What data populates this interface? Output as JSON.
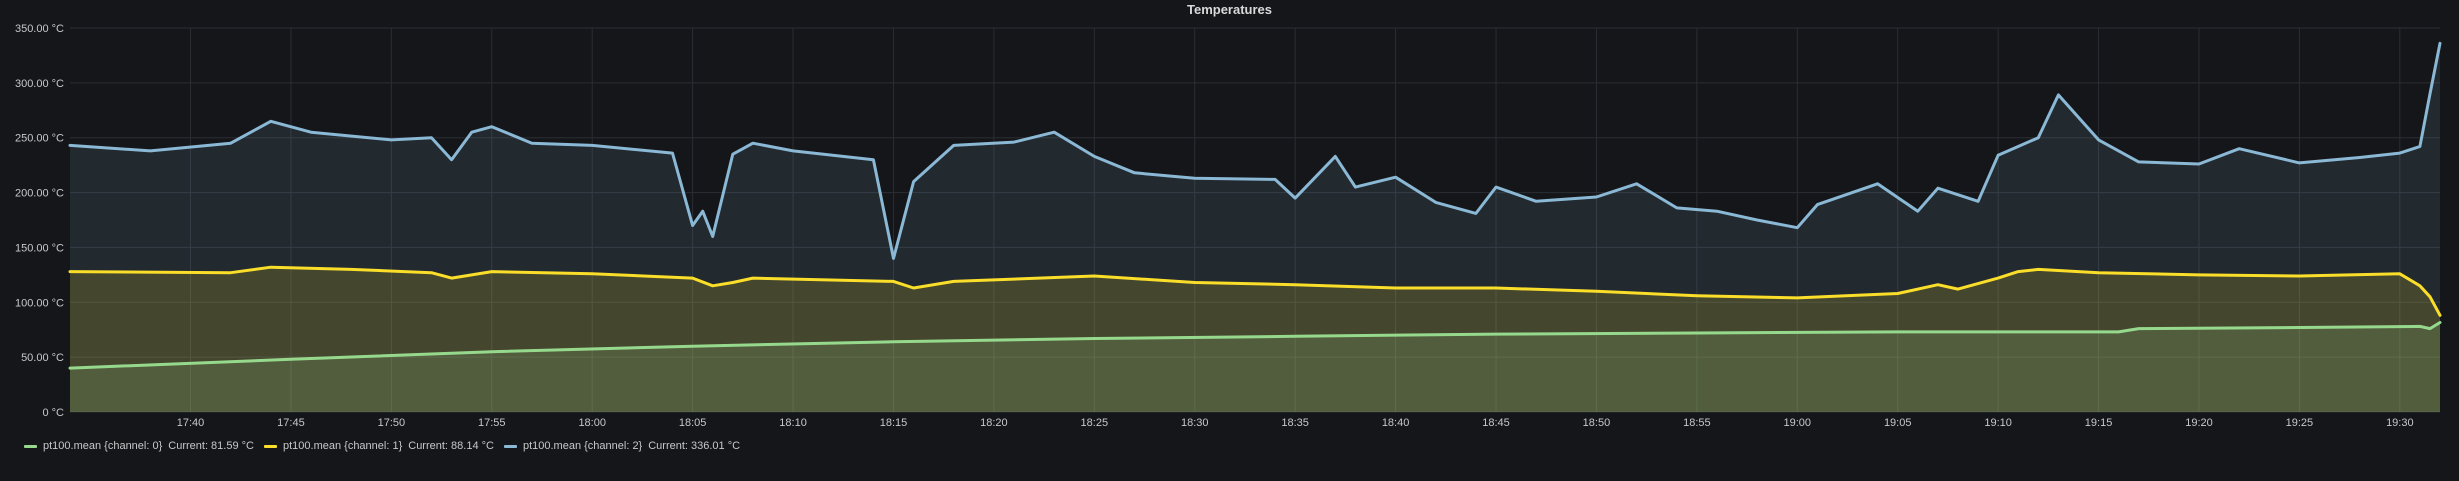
{
  "panel": {
    "title": "Temperatures"
  },
  "chart_data": {
    "type": "line",
    "title": "Temperatures",
    "xlabel": "",
    "ylabel": "",
    "ylim": [
      0,
      350
    ],
    "y_ticks": [
      "0 °C",
      "50.00 °C",
      "100.00 °C",
      "150.00 °C",
      "200.00 °C",
      "250.00 °C",
      "300.00 °C",
      "350.00 °C"
    ],
    "y_tick_values": [
      0,
      50,
      100,
      150,
      200,
      250,
      300,
      350
    ],
    "x_range": [
      "17:34",
      "19:32"
    ],
    "x_ticks": [
      "17:40",
      "17:45",
      "17:50",
      "17:55",
      "18:00",
      "18:05",
      "18:10",
      "18:15",
      "18:20",
      "18:25",
      "18:30",
      "18:35",
      "18:40",
      "18:45",
      "18:50",
      "18:55",
      "19:00",
      "19:05",
      "19:10",
      "19:15",
      "19:20",
      "19:25",
      "19:30"
    ],
    "grid": true,
    "legend_position": "bottom-left",
    "series": [
      {
        "name": "pt100.mean {channel: 0}",
        "color": "#96d98d",
        "current": "Current: 81.59 °C",
        "points": [
          [
            "17:34",
            40
          ],
          [
            "17:45",
            48
          ],
          [
            "17:55",
            55
          ],
          [
            "18:05",
            60
          ],
          [
            "18:15",
            64
          ],
          [
            "18:25",
            67
          ],
          [
            "18:35",
            69
          ],
          [
            "18:45",
            71
          ],
          [
            "18:55",
            72
          ],
          [
            "19:05",
            73
          ],
          [
            "19:16",
            73
          ],
          [
            "19:17",
            76
          ],
          [
            "19:25",
            77
          ],
          [
            "19:31",
            78
          ],
          [
            "19:31.5",
            76
          ],
          [
            "19:32",
            81.59
          ]
        ]
      },
      {
        "name": "pt100.mean {channel: 1}",
        "color": "#fade2a",
        "current": "Current: 88.14 °C",
        "points": [
          [
            "17:34",
            128
          ],
          [
            "17:42",
            127
          ],
          [
            "17:44",
            132
          ],
          [
            "17:48",
            130
          ],
          [
            "17:52",
            127
          ],
          [
            "17:53",
            122
          ],
          [
            "17:55",
            128
          ],
          [
            "18:00",
            126
          ],
          [
            "18:05",
            122
          ],
          [
            "18:06",
            115
          ],
          [
            "18:07",
            118
          ],
          [
            "18:08",
            122
          ],
          [
            "18:15",
            119
          ],
          [
            "18:16",
            113
          ],
          [
            "18:18",
            119
          ],
          [
            "18:25",
            124
          ],
          [
            "18:30",
            118
          ],
          [
            "18:35",
            116
          ],
          [
            "18:40",
            113
          ],
          [
            "18:45",
            113
          ],
          [
            "18:50",
            110
          ],
          [
            "18:55",
            106
          ],
          [
            "19:00",
            104
          ],
          [
            "19:05",
            108
          ],
          [
            "19:07",
            116
          ],
          [
            "19:08",
            112
          ],
          [
            "19:10",
            122
          ],
          [
            "19:11",
            128
          ],
          [
            "19:12",
            130
          ],
          [
            "19:15",
            127
          ],
          [
            "19:20",
            125
          ],
          [
            "19:25",
            124
          ],
          [
            "19:30",
            126
          ],
          [
            "19:31",
            115
          ],
          [
            "19:31.5",
            105
          ],
          [
            "19:32",
            88.14
          ]
        ]
      },
      {
        "name": "pt100.mean {channel: 2}",
        "color": "#8ab8d5",
        "current": "Current: 336.01 °C",
        "points": [
          [
            "17:34",
            243
          ],
          [
            "17:38",
            238
          ],
          [
            "17:42",
            245
          ],
          [
            "17:44",
            265
          ],
          [
            "17:46",
            255
          ],
          [
            "17:50",
            248
          ],
          [
            "17:52",
            250
          ],
          [
            "17:53",
            230
          ],
          [
            "17:54",
            255
          ],
          [
            "17:55",
            260
          ],
          [
            "17:57",
            245
          ],
          [
            "18:00",
            243
          ],
          [
            "18:04",
            236
          ],
          [
            "18:05",
            170
          ],
          [
            "18:05.5",
            183
          ],
          [
            "18:06",
            160
          ],
          [
            "18:07",
            235
          ],
          [
            "18:08",
            245
          ],
          [
            "18:10",
            238
          ],
          [
            "18:14",
            230
          ],
          [
            "18:15",
            140
          ],
          [
            "18:16",
            210
          ],
          [
            "18:18",
            243
          ],
          [
            "18:21",
            246
          ],
          [
            "18:23",
            255
          ],
          [
            "18:25",
            233
          ],
          [
            "18:27",
            218
          ],
          [
            "18:30",
            213
          ],
          [
            "18:34",
            212
          ],
          [
            "18:35",
            195
          ],
          [
            "18:37",
            233
          ],
          [
            "18:38",
            205
          ],
          [
            "18:40",
            214
          ],
          [
            "18:42",
            191
          ],
          [
            "18:44",
            181
          ],
          [
            "18:45",
            205
          ],
          [
            "18:47",
            192
          ],
          [
            "18:50",
            196
          ],
          [
            "18:52",
            208
          ],
          [
            "18:54",
            186
          ],
          [
            "18:56",
            183
          ],
          [
            "18:58",
            175
          ],
          [
            "19:00",
            168
          ],
          [
            "19:01",
            189
          ],
          [
            "19:04",
            208
          ],
          [
            "19:06",
            183
          ],
          [
            "19:07",
            204
          ],
          [
            "19:09",
            192
          ],
          [
            "19:10",
            234
          ],
          [
            "19:12",
            250
          ],
          [
            "19:13",
            289
          ],
          [
            "19:15",
            248
          ],
          [
            "19:17",
            228
          ],
          [
            "19:20",
            226
          ],
          [
            "19:22",
            240
          ],
          [
            "19:25",
            227
          ],
          [
            "19:28",
            232
          ],
          [
            "19:30",
            236
          ],
          [
            "19:31",
            242
          ],
          [
            "19:31.5",
            290
          ],
          [
            "19:32",
            336.01
          ]
        ]
      }
    ]
  }
}
